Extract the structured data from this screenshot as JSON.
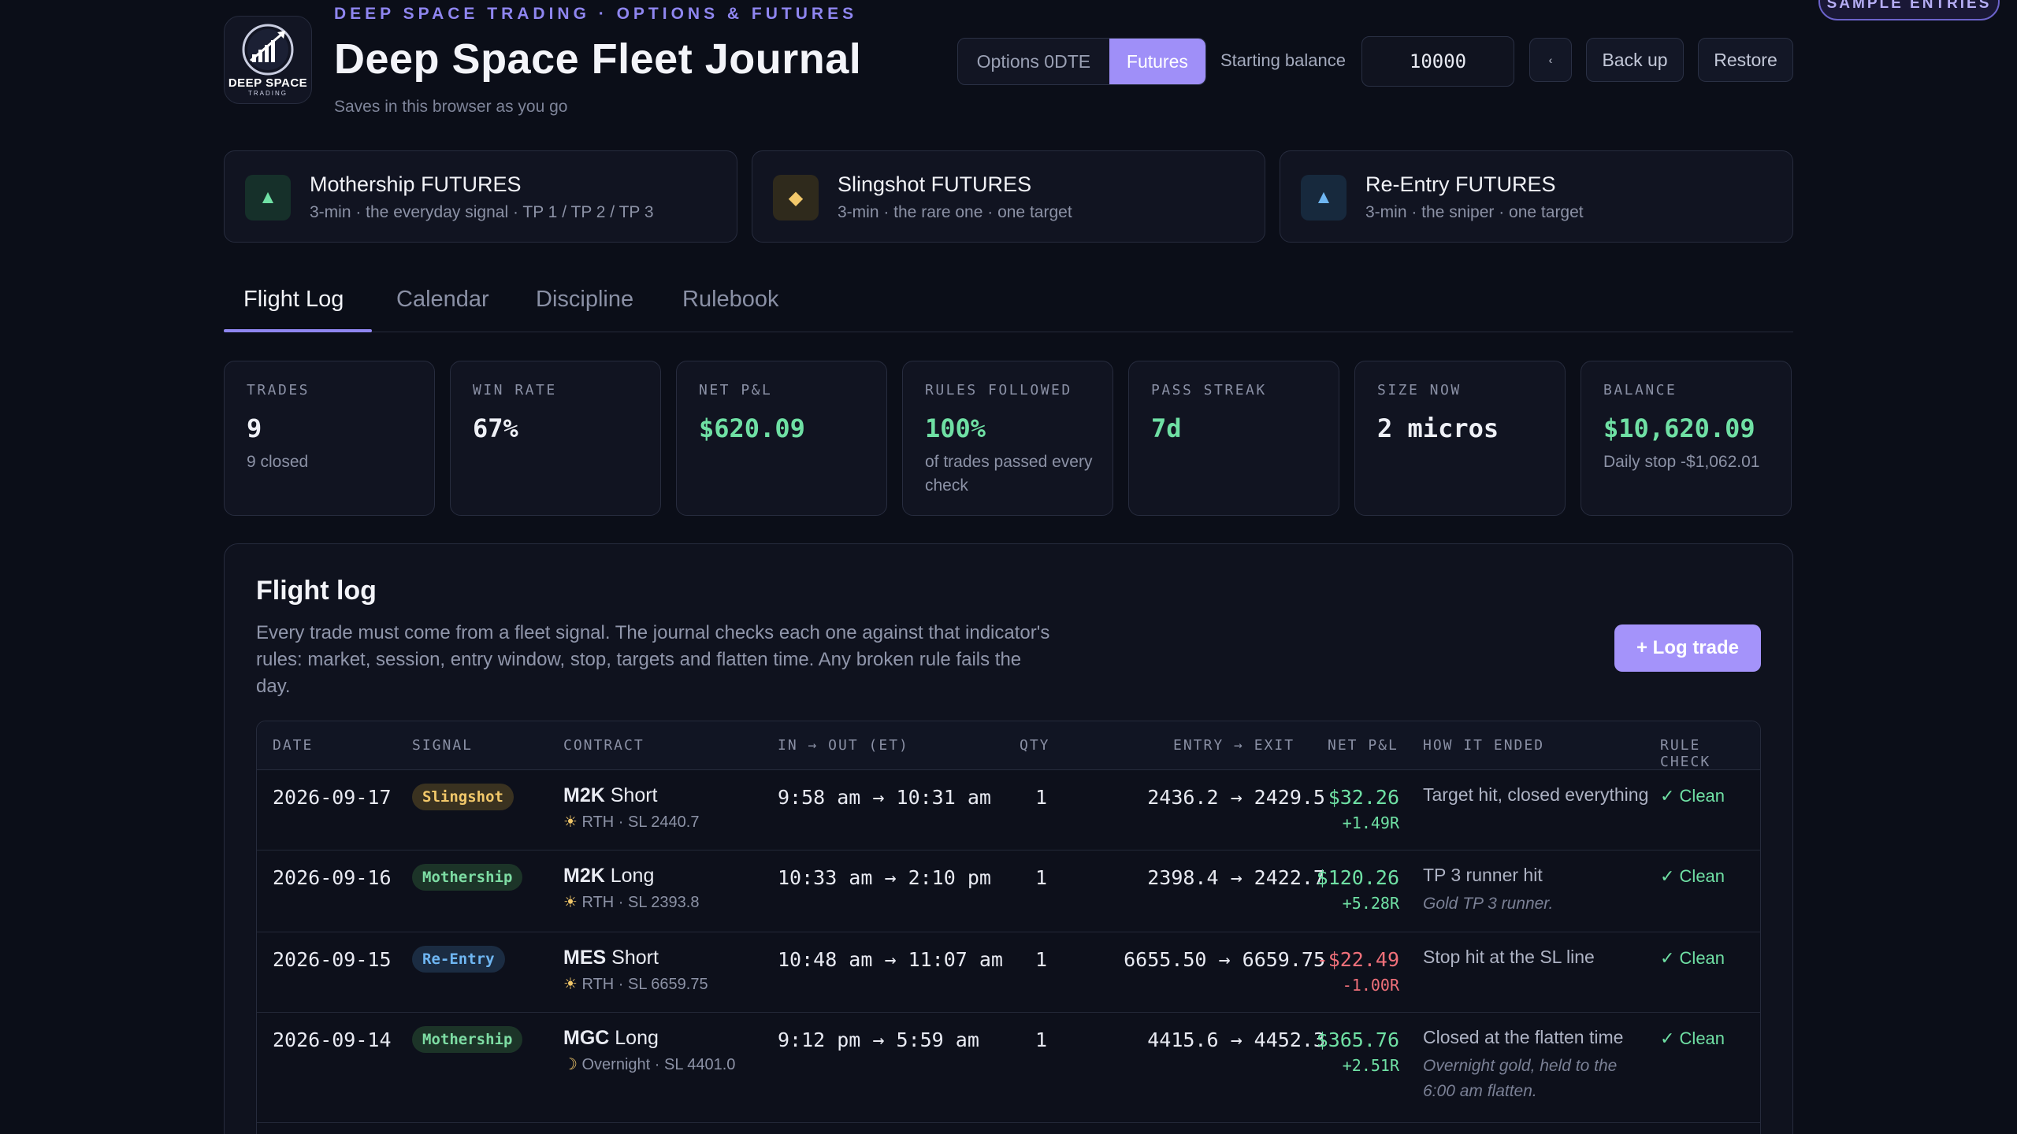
{
  "badge": "SAMPLE ENTRIES",
  "brand": {
    "logo_line1": "DEEP SPACE",
    "logo_line2": "TRADING",
    "kicker": "DEEP SPACE TRADING · OPTIONS & FUTURES",
    "title": "Deep Space Fleet Journal",
    "subtitle": "Saves in this browser as you go"
  },
  "toolbar": {
    "modes": [
      "Options 0DTE",
      "Futures"
    ],
    "active_mode": "Futures",
    "balance_label": "Starting balance",
    "balance_value": "10000",
    "collapse_icon": "‹",
    "backup_label": "Back up",
    "restore_label": "Restore"
  },
  "indicators": [
    {
      "icon": "▲",
      "name": "Mothership FUTURES",
      "desc": "3-min · the everyday signal · TP 1 / TP 2 / TP 3",
      "color": "#6fe0a4"
    },
    {
      "icon": "◆",
      "name": "Slingshot FUTURES",
      "desc": "3-min · the rare one · one target",
      "color": "#f2c86a"
    },
    {
      "icon": "▲",
      "name": "Re-Entry FUTURES",
      "desc": "3-min · the sniper · one target",
      "color": "#6fb6f2"
    }
  ],
  "tabs": [
    "Flight Log",
    "Calendar",
    "Discipline",
    "Rulebook"
  ],
  "stats": [
    {
      "label": "TRADES",
      "value": "9",
      "sub": "9 closed"
    },
    {
      "label": "WIN RATE",
      "value": "67%",
      "sub": ""
    },
    {
      "label": "NET P&L",
      "value": "$620.09",
      "sub": ""
    },
    {
      "label": "RULES FOLLOWED",
      "value": "100%",
      "sub": "of trades passed every check"
    },
    {
      "label": "PASS STREAK",
      "value": "7d",
      "sub": ""
    },
    {
      "label": "SIZE NOW",
      "value": "2 micros",
      "sub": ""
    },
    {
      "label": "BALANCE",
      "value": "$10,620.09",
      "sub": "Daily stop -$1,062.01"
    }
  ],
  "log": {
    "title": "Flight log",
    "description": "Every trade must come from a fleet signal. The journal checks each one against that indicator's rules: market, session, entry window, stop, targets and flatten time. Any broken rule fails the day.",
    "add_label": "+ Log trade",
    "columns": [
      "DATE",
      "SIGNAL",
      "CONTRACT",
      "IN → OUT (ET)",
      "QTY",
      "ENTRY → EXIT",
      "NET P&L",
      "HOW IT ENDED",
      "RULE CHECK"
    ],
    "rows": [
      {
        "date": "2026-09-17",
        "signal": "Slingshot",
        "kind": "slingshot",
        "symbol": "M2K",
        "side": "Short",
        "session_icon": "☀",
        "session": "RTH · SL 2440.7",
        "time": "9:58 am → 10:31 am",
        "qty": "1",
        "prices": "2436.2 → 2429.5",
        "pnl": "$32.26",
        "r": "+1.49R",
        "sign": "pos",
        "how": "Target hit, closed everything",
        "note": "",
        "check": "✓ Clean"
      },
      {
        "date": "2026-09-16",
        "signal": "Mothership",
        "kind": "mothership",
        "symbol": "M2K",
        "side": "Long",
        "session_icon": "☀",
        "session": "RTH · SL 2393.8",
        "time": "10:33 am → 2:10 pm",
        "qty": "1",
        "prices": "2398.4 → 2422.7",
        "pnl": "$120.26",
        "r": "+5.28R",
        "sign": "pos",
        "how": "TP 3 runner hit",
        "note": "Gold TP 3 runner.",
        "check": "✓ Clean"
      },
      {
        "date": "2026-09-15",
        "signal": "Re-Entry",
        "kind": "reentry",
        "symbol": "MES",
        "side": "Short",
        "session_icon": "☀",
        "session": "RTH · SL 6659.75",
        "time": "10:48 am → 11:07 am",
        "qty": "1",
        "prices": "6655.50 → 6659.75",
        "pnl": "-$22.49",
        "r": "-1.00R",
        "sign": "neg",
        "how": "Stop hit at the SL line",
        "note": "",
        "check": "✓ Clean"
      },
      {
        "date": "2026-09-14",
        "signal": "Mothership",
        "kind": "mothership",
        "symbol": "MGC",
        "side": "Long",
        "session_icon": "☽",
        "session": "Overnight · SL 4401.0",
        "time": "9:12 pm → 5:59 am",
        "qty": "1",
        "prices": "4415.6 → 4452.3",
        "pnl": "$365.76",
        "r": "+2.51R",
        "sign": "pos",
        "how": "Closed at the flatten time",
        "note": "Overnight gold, held to the 6:00 am flatten.",
        "check": "✓ Clean"
      }
    ]
  }
}
